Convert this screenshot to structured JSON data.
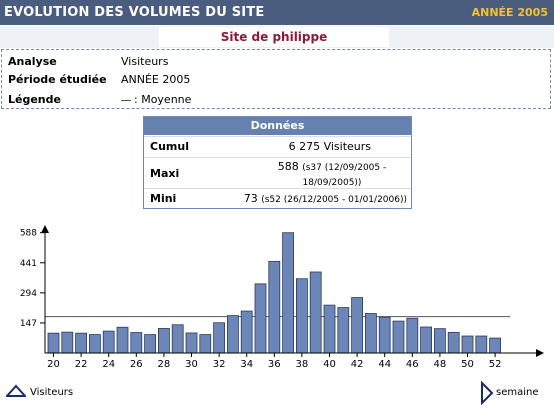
{
  "header": {
    "title": "EVOLUTION DES VOLUMES DU SITE",
    "year": "ANNÉE 2005"
  },
  "site": {
    "name": "Site de philippe"
  },
  "info": {
    "analyse_label": "Analyse",
    "analyse_value": "Visiteurs",
    "periode_label": "Période étudiée",
    "periode_value": "ANNÉE 2005",
    "legende_label": "Légende",
    "legende_value": ": Moyenne"
  },
  "donnees": {
    "title": "Données",
    "cumul_label": "Cumul",
    "cumul_value": "6 275 Visiteurs",
    "maxi_label": "Maxi",
    "maxi_value": "588",
    "maxi_detail": "(s37 (12/09/2005 - 18/09/2005))",
    "mini_label": "Mini",
    "mini_value": "73",
    "mini_detail": "(s52 (26/12/2005 - 01/01/2006))"
  },
  "footer": {
    "y_axis_label": "Visiteurs",
    "x_axis_label": "semaine"
  },
  "colors": {
    "bar": "#6d86b8",
    "bar_border": "#2b3a5c",
    "header": "#4b5d7e",
    "accent": "#f2c230"
  },
  "chart_data": {
    "type": "bar",
    "x": [
      20,
      21,
      22,
      23,
      24,
      25,
      26,
      27,
      28,
      29,
      30,
      31,
      32,
      33,
      34,
      35,
      36,
      37,
      38,
      39,
      40,
      41,
      42,
      43,
      44,
      45,
      46,
      47,
      48,
      49,
      50,
      51,
      52
    ],
    "values": [
      97,
      102,
      97,
      90,
      107,
      126,
      100,
      90,
      120,
      138,
      98,
      90,
      148,
      183,
      205,
      338,
      448,
      588,
      363,
      396,
      234,
      222,
      271,
      193,
      175,
      156,
      170,
      127,
      119,
      101,
      83,
      83,
      73
    ],
    "average": 178,
    "yticks": [
      147,
      294,
      441,
      588
    ],
    "xticks": [
      20,
      22,
      24,
      26,
      28,
      30,
      32,
      34,
      36,
      38,
      40,
      42,
      44,
      46,
      48,
      50,
      52
    ],
    "ylim": [
      0,
      630
    ]
  }
}
